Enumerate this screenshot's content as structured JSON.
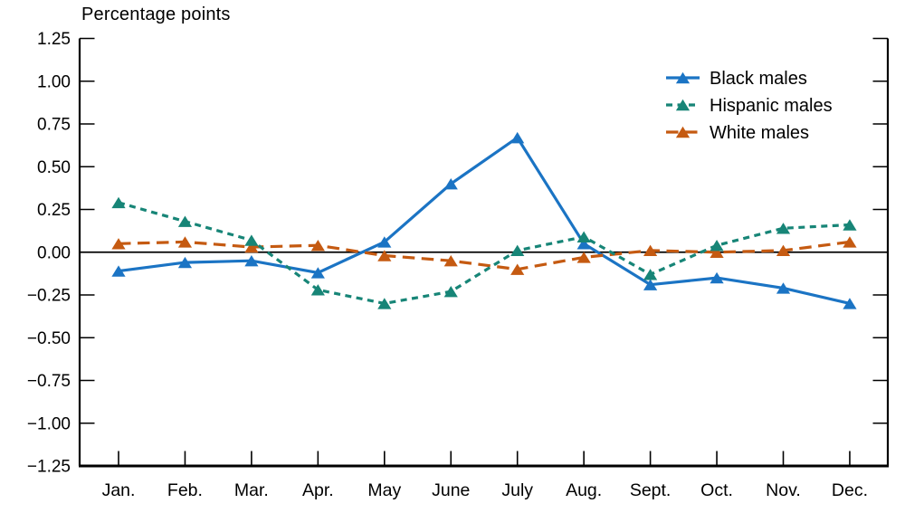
{
  "chart_data": {
    "type": "line",
    "title": "Percentage points",
    "xlabel": "",
    "ylabel": "Percentage points",
    "categories": [
      "Jan.",
      "Feb.",
      "Mar.",
      "Apr.",
      "May",
      "June",
      "July",
      "Aug.",
      "Sept.",
      "Oct.",
      "Nov.",
      "Dec."
    ],
    "ylim": [
      -1.25,
      1.25
    ],
    "y_tick_values": [
      1.25,
      1.0,
      0.75,
      0.5,
      0.25,
      0.0,
      -0.25,
      -0.5,
      -0.75,
      -1.0,
      -1.25
    ],
    "y_tick_labels": [
      "1.25",
      "1.00",
      "0.75",
      "0.50",
      "0.25",
      "0.00",
      "−0.25",
      "−0.50",
      "−0.75",
      "−1.00",
      "−1.25"
    ],
    "grid": false,
    "zero_line": true,
    "legend_position": "top-right",
    "axis_color": "#000000",
    "series": [
      {
        "name": "Black males",
        "color": "#1b74c4",
        "line_style": "solid",
        "marker": "triangle-up",
        "values": [
          -0.11,
          -0.06,
          -0.05,
          -0.12,
          0.06,
          0.4,
          0.67,
          0.05,
          -0.19,
          -0.15,
          -0.21,
          -0.3
        ]
      },
      {
        "name": "White males",
        "color": "#c55a11",
        "line_style": "long-dash",
        "marker": "triangle-up",
        "values": [
          0.05,
          0.06,
          0.03,
          0.04,
          -0.02,
          -0.05,
          -0.1,
          -0.03,
          0.01,
          0.0,
          0.01,
          0.06
        ]
      },
      {
        "name": "Hispanic males",
        "color": "#178577",
        "line_style": "short-dash",
        "marker": "triangle-up",
        "values": [
          0.29,
          0.18,
          0.07,
          -0.22,
          -0.3,
          -0.23,
          0.01,
          0.09,
          -0.13,
          0.04,
          0.14,
          0.16
        ]
      }
    ],
    "legend_order": [
      "Black males",
      "Hispanic males",
      "White males"
    ]
  }
}
